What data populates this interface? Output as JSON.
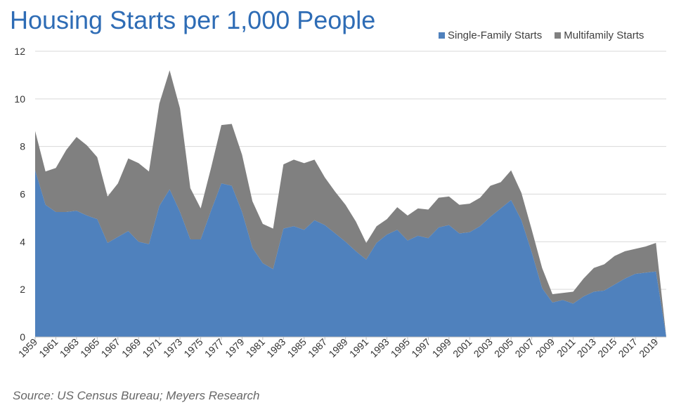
{
  "title": "Housing Starts per 1,000 People",
  "source": "Source: US Census Bureau; Meyers Research",
  "colors": {
    "single": "#4f81bd",
    "multi": "#808080",
    "title": "#2e6cb5"
  },
  "legend": [
    {
      "label": "Single-Family Starts",
      "color": "#4f81bd"
    },
    {
      "label": "Multifamily Starts",
      "color": "#808080"
    }
  ],
  "chart_data": {
    "type": "area",
    "stacked": true,
    "title": "Housing Starts per 1,000 People",
    "xlabel": "",
    "ylabel": "",
    "ylim": [
      0,
      12
    ],
    "yticks": [
      0,
      2,
      4,
      6,
      8,
      10,
      12
    ],
    "grid": true,
    "legend_position": "top-right",
    "x": [
      1959,
      1960,
      1961,
      1962,
      1963,
      1964,
      1965,
      1966,
      1967,
      1968,
      1969,
      1970,
      1971,
      1972,
      1973,
      1974,
      1975,
      1976,
      1977,
      1978,
      1979,
      1980,
      1981,
      1982,
      1983,
      1984,
      1985,
      1986,
      1987,
      1988,
      1989,
      1990,
      1991,
      1992,
      1993,
      1994,
      1995,
      1996,
      1997,
      1998,
      1999,
      2000,
      2001,
      2002,
      2003,
      2004,
      2005,
      2006,
      2007,
      2008,
      2009,
      2010,
      2011,
      2012,
      2013,
      2014,
      2015,
      2016,
      2017,
      2018,
      2019,
      2020
    ],
    "xtick_labels": [
      "1959",
      "1961",
      "1963",
      "1965",
      "1967",
      "1969",
      "1971",
      "1973",
      "1975",
      "1977",
      "1979",
      "1981",
      "1983",
      "1985",
      "1987",
      "1989",
      "1991",
      "1993",
      "1995",
      "1997",
      "1999",
      "2001",
      "2003",
      "2005",
      "2007",
      "2009",
      "2011",
      "2013",
      "2015",
      "2017",
      "2019"
    ],
    "series": [
      {
        "name": "Single-Family Starts",
        "values": [
          7.0,
          5.55,
          5.25,
          5.25,
          5.3,
          5.1,
          4.95,
          3.95,
          4.2,
          4.45,
          4.0,
          3.9,
          5.5,
          6.2,
          5.25,
          4.1,
          4.1,
          5.3,
          6.45,
          6.35,
          5.25,
          3.75,
          3.1,
          2.85,
          4.55,
          4.65,
          4.5,
          4.9,
          4.7,
          4.35,
          4.0,
          3.6,
          3.25,
          3.95,
          4.3,
          4.5,
          4.05,
          4.25,
          4.15,
          4.6,
          4.7,
          4.35,
          4.4,
          4.65,
          5.05,
          5.4,
          5.75,
          4.9,
          3.55,
          2.05,
          1.45,
          1.55,
          1.4,
          1.7,
          1.9,
          1.95,
          2.2,
          2.45,
          2.65,
          2.7,
          2.75,
          0.0
        ]
      },
      {
        "name": "Multifamily Starts",
        "values": [
          1.65,
          1.4,
          1.85,
          2.6,
          3.1,
          2.95,
          2.6,
          1.95,
          2.25,
          3.05,
          3.3,
          3.05,
          4.3,
          5.0,
          4.35,
          2.15,
          1.3,
          1.8,
          2.45,
          2.6,
          2.4,
          1.95,
          1.65,
          1.7,
          2.7,
          2.8,
          2.8,
          2.55,
          2.0,
          1.75,
          1.55,
          1.25,
          0.7,
          0.7,
          0.65,
          0.95,
          1.05,
          1.15,
          1.2,
          1.25,
          1.2,
          1.2,
          1.2,
          1.2,
          1.3,
          1.1,
          1.25,
          1.15,
          0.95,
          0.85,
          0.35,
          0.3,
          0.5,
          0.75,
          1.0,
          1.1,
          1.2,
          1.15,
          1.05,
          1.1,
          1.2,
          0.0
        ]
      }
    ]
  }
}
